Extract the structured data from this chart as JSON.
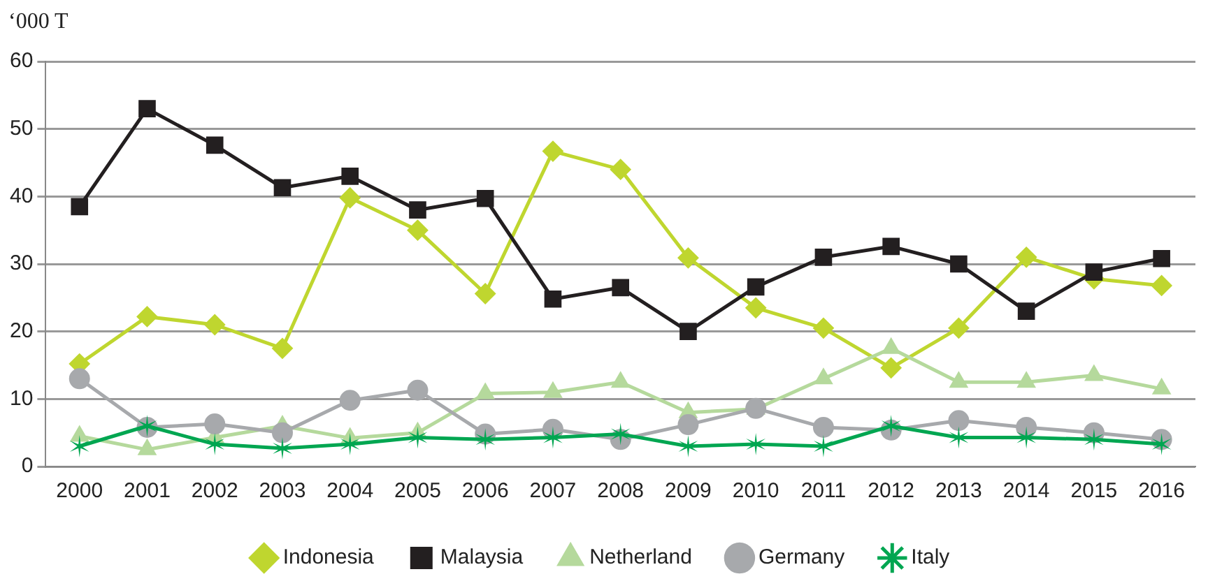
{
  "chart_data": {
    "type": "line",
    "ylabel": "‘000 T",
    "categories": [
      "2000",
      "2001",
      "2002",
      "2003",
      "2004",
      "2005",
      "2006",
      "2007",
      "2008",
      "2009",
      "2010",
      "2011",
      "2012",
      "2013",
      "2014",
      "2015",
      "2016"
    ],
    "series": [
      {
        "name": "Indonesia",
        "color": "#bfd62f",
        "marker": "diamond",
        "values": [
          15.2,
          22.2,
          21,
          17.5,
          39.8,
          35,
          25.6,
          46.7,
          44,
          30.9,
          23.5,
          20.5,
          14.6,
          20.5,
          31,
          27.8,
          26.8
        ]
      },
      {
        "name": "Malaysia",
        "color": "#231f20",
        "marker": "square",
        "values": [
          38.5,
          53,
          47.6,
          41.3,
          43,
          38,
          39.7,
          24.8,
          26.5,
          20,
          26.6,
          31,
          32.6,
          30,
          23,
          28.8,
          30.8
        ]
      },
      {
        "name": "Netherland",
        "color": "#b5d99c",
        "marker": "triangle",
        "values": [
          4.5,
          2.5,
          4.3,
          6,
          4.2,
          5,
          10.8,
          11,
          12.5,
          8,
          8.5,
          13,
          17.5,
          12.5,
          12.5,
          13.5,
          11.5
        ]
      },
      {
        "name": "Germany",
        "color": "#a7a9ac",
        "marker": "circle",
        "values": [
          13,
          5.8,
          6.3,
          5,
          9.8,
          11.3,
          4.8,
          5.5,
          4,
          6.2,
          8.6,
          5.8,
          5.4,
          6.8,
          5.8,
          5,
          4
        ]
      },
      {
        "name": "Italy",
        "color": "#00a651",
        "marker": "cross",
        "values": [
          3,
          6,
          3.3,
          2.7,
          3.3,
          4.3,
          4,
          4.3,
          4.8,
          3,
          3.3,
          3,
          6,
          4.3,
          4.3,
          4,
          3.3
        ]
      }
    ],
    "ylim": [
      0,
      60
    ],
    "yticks": [
      0,
      10,
      20,
      30,
      40,
      50,
      60
    ],
    "grid": "y",
    "legend": "bottom"
  }
}
